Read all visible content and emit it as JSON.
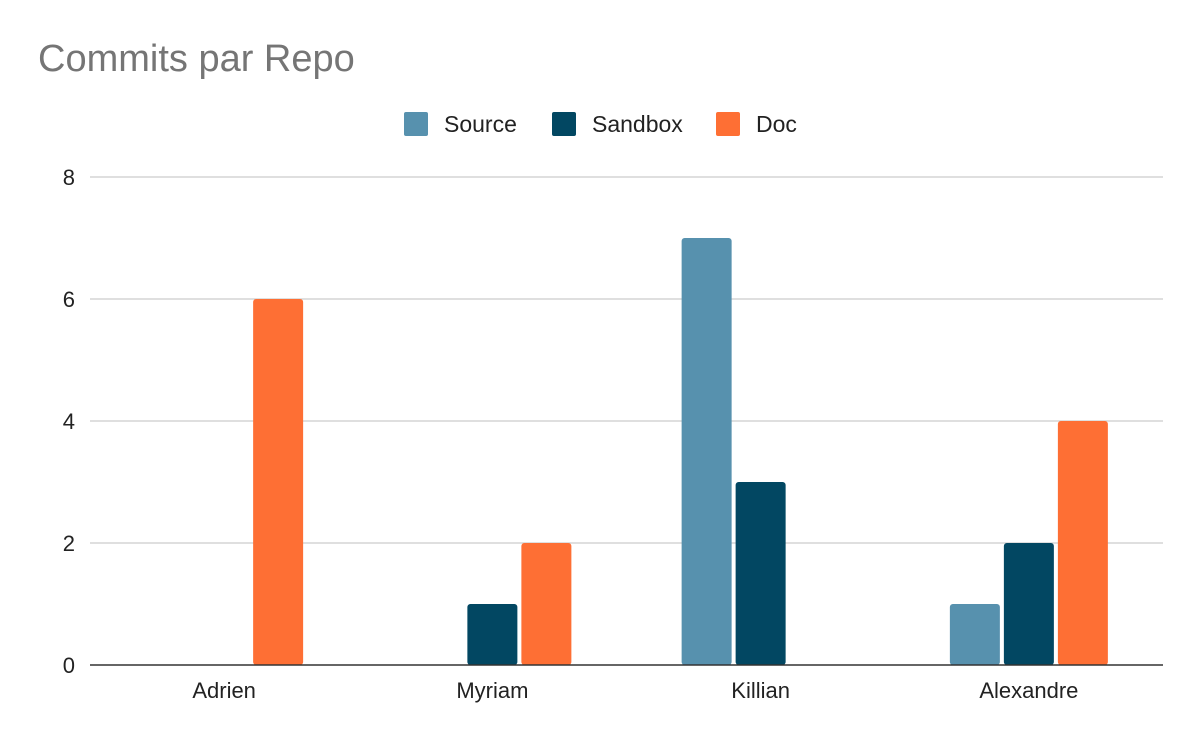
{
  "chart_data": {
    "type": "bar",
    "title": "Commits par Repo",
    "categories": [
      "Adrien",
      "Myriam",
      "Killian",
      "Alexandre"
    ],
    "series": [
      {
        "name": "Source",
        "values": [
          0,
          0,
          7,
          1
        ],
        "color": "#5791AE"
      },
      {
        "name": "Sandbox",
        "values": [
          0,
          1,
          3,
          2
        ],
        "color": "#024762"
      },
      {
        "name": "Doc",
        "values": [
          6,
          2,
          0,
          4
        ],
        "color": "#FE6F34"
      }
    ],
    "ylim": [
      0,
      8
    ],
    "yticks": [
      0,
      2,
      4,
      6,
      8
    ],
    "grid": true,
    "legend_position": "top-center",
    "xlabel": "",
    "ylabel": ""
  }
}
